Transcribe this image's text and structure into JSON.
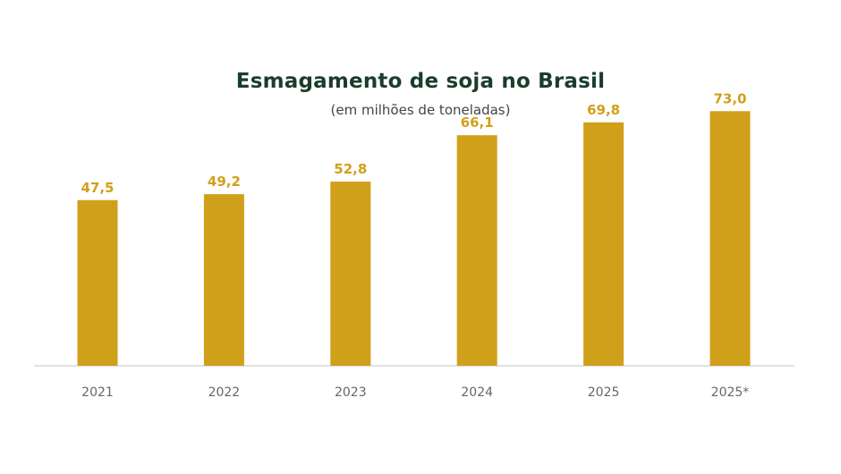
{
  "chart_data": {
    "type": "bar",
    "title": "Esmagamento de soja no Brasil",
    "subtitle": "(em milhões de toneladas)",
    "categories": [
      "2021",
      "2022",
      "2023",
      "2024",
      "2025",
      "2025*"
    ],
    "values": [
      47.5,
      49.2,
      52.8,
      66.1,
      69.8,
      73.0
    ],
    "value_labels": [
      "47,5",
      "49,2",
      "52,8",
      "66,1",
      "69,8",
      "73,0"
    ],
    "xlabel": "",
    "ylabel": "",
    "ylim": [
      0,
      80
    ],
    "grid": false,
    "legend": "none",
    "bar_color": "#d1a01a"
  }
}
